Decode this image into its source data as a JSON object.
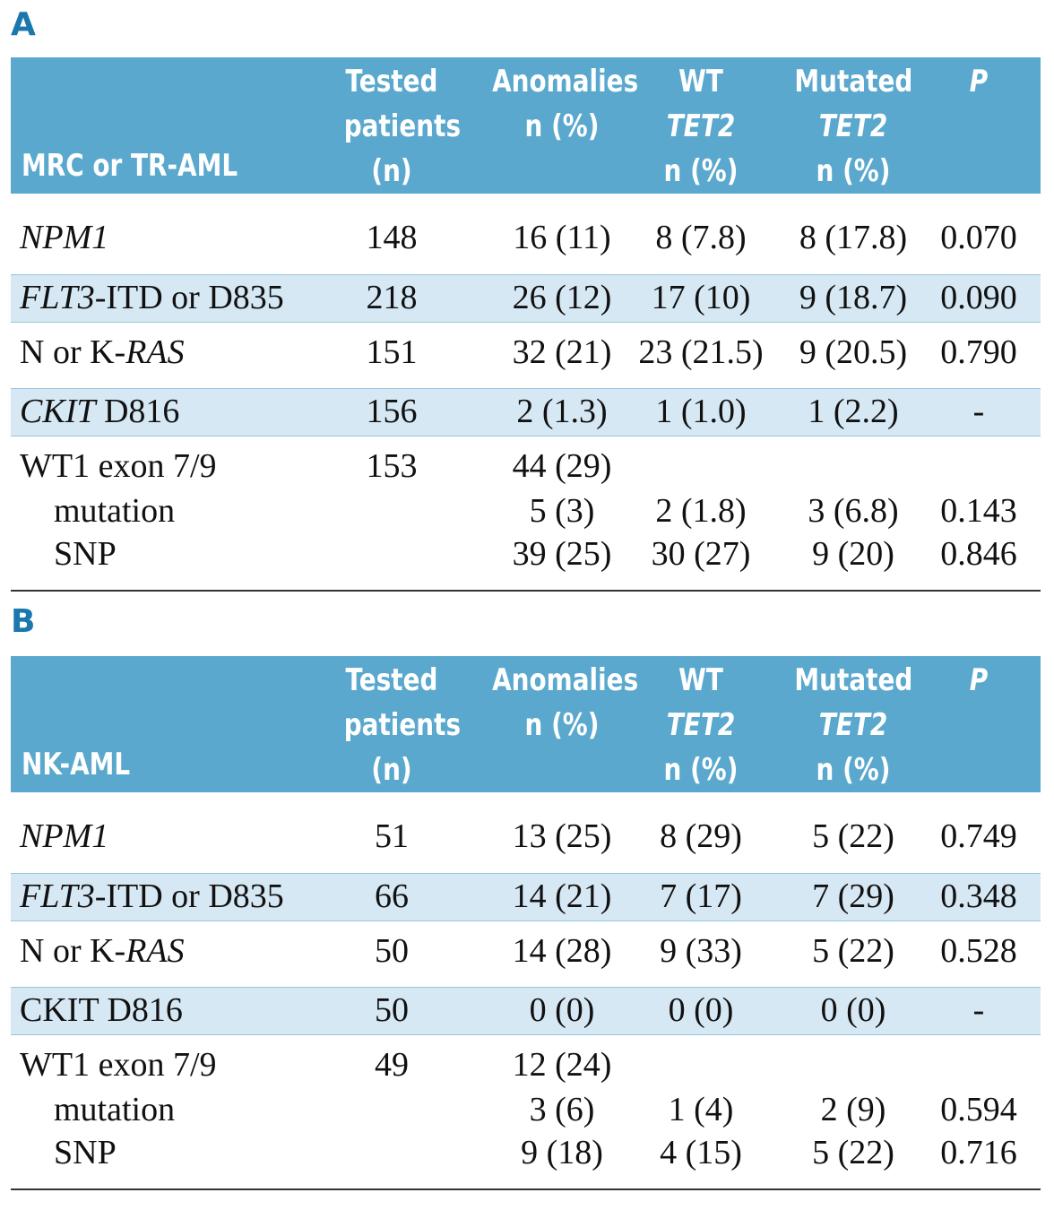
{
  "sections": [
    {
      "label": "A",
      "header": {
        "row_label": "MRC or TR-AML",
        "tested": [
          "Tested",
          "patients",
          "(n)"
        ],
        "anomalies": [
          "Anomalies",
          "n (%)"
        ],
        "wt": [
          "WT",
          "TET2",
          "n (%)"
        ],
        "mutated": [
          "Mutated",
          "TET2",
          "n (%)"
        ],
        "p": "P"
      },
      "rows": [
        {
          "name_italic": "NPM1",
          "name_rest": "",
          "tested": "148",
          "anomalies": "16 (11)",
          "wt": "8 (7.8)",
          "mutated": "8 (17.8)",
          "p": "0.070"
        },
        {
          "name_italic": "FLT3",
          "name_rest": "-ITD or D835",
          "tested": "218",
          "anomalies": "26 (12)",
          "wt": "17 (10)",
          "mutated": "9 (18.7)",
          "p": "0.090"
        },
        {
          "name_prefix": "N or K-",
          "name_italic": "RAS",
          "tested": "151",
          "anomalies": "32 (21)",
          "wt": "23 (21.5)",
          "mutated": "9 (20.5)",
          "p": "0.790"
        },
        {
          "name_italic": "CKIT",
          "name_rest": " D816",
          "tested": "156",
          "anomalies": "2 (1.3)",
          "wt": "1 (1.0)",
          "mutated": "1 (2.2)",
          "p": "-"
        }
      ],
      "wt1": {
        "name": "WT1 exon 7/9",
        "tested": "153",
        "anomalies": "44 (29)",
        "mutation": {
          "label": "mutation",
          "anomalies": "5 (3)",
          "wt": "2 (1.8)",
          "mutated": "3 (6.8)",
          "p": "0.143"
        },
        "snp": {
          "label": "SNP",
          "anomalies": "39 (25)",
          "wt": "30 (27)",
          "mutated": "9 (20)",
          "p": "0.846"
        }
      }
    },
    {
      "label": "B",
      "header": {
        "row_label": "NK-AML",
        "tested": [
          "Tested",
          "patients",
          "(n)"
        ],
        "anomalies": [
          "Anomalies",
          "n (%)"
        ],
        "wt": [
          "WT",
          "TET2",
          "n (%)"
        ],
        "mutated": [
          "Mutated",
          "TET2",
          "n (%)"
        ],
        "p": "P"
      },
      "rows": [
        {
          "name_italic": "NPM1",
          "name_rest": "",
          "tested": "51",
          "anomalies": "13 (25)",
          "wt": "8 (29)",
          "mutated": "5 (22)",
          "p": "0.749"
        },
        {
          "name_italic": "FLT3",
          "name_rest": "-ITD or D835",
          "tested": "66",
          "anomalies": "14 (21)",
          "wt": "7 (17)",
          "mutated": "7 (29)",
          "p": "0.348"
        },
        {
          "name_prefix": "N or K-",
          "name_italic": "RAS",
          "tested": "50",
          "anomalies": "14 (28)",
          "wt": "9 (33)",
          "mutated": "5 (22)",
          "p": "0.528"
        },
        {
          "name_plain": "CKIT D816",
          "tested": "50",
          "anomalies": "0 (0)",
          "wt": "0 (0)",
          "mutated": "0 (0)",
          "p": "-"
        }
      ],
      "wt1": {
        "name": "WT1 exon 7/9",
        "tested": "49",
        "anomalies": "12 (24)",
        "mutation": {
          "label": "mutation",
          "anomalies": "3 (6)",
          "wt": "1 (4)",
          "mutated": "2 (9)",
          "p": "0.594"
        },
        "snp": {
          "label": "SNP",
          "anomalies": "9 (18)",
          "wt": "4 (15)",
          "mutated": "5 (22)",
          "p": "0.716"
        }
      }
    }
  ]
}
